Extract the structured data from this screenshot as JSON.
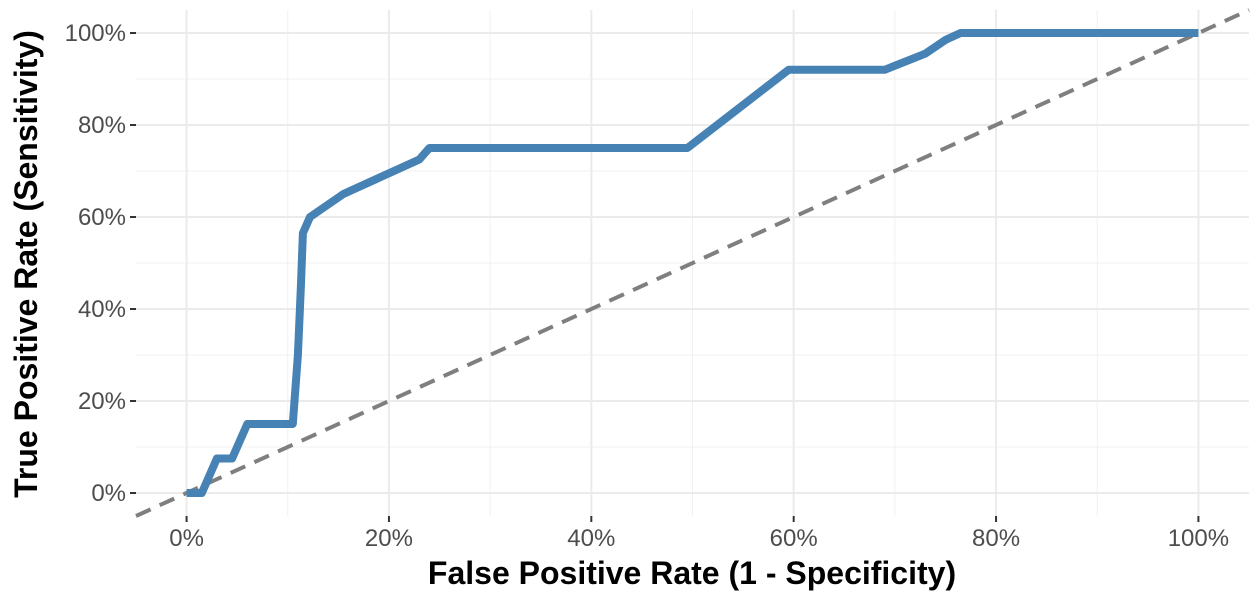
{
  "chart_data": {
    "type": "line",
    "title": "",
    "xlabel": "False Positive Rate (1 - Specificity)",
    "ylabel": "True Positive Rate (Sensitivity)",
    "xlim": [
      -5,
      105
    ],
    "ylim": [
      -5,
      105
    ],
    "x_ticks": [
      {
        "value": 0,
        "label": "0%"
      },
      {
        "value": 20,
        "label": "20%"
      },
      {
        "value": 40,
        "label": "40%"
      },
      {
        "value": 60,
        "label": "60%"
      },
      {
        "value": 80,
        "label": "80%"
      },
      {
        "value": 100,
        "label": "100%"
      }
    ],
    "y_ticks": [
      {
        "value": 0,
        "label": "0%"
      },
      {
        "value": 20,
        "label": "20%"
      },
      {
        "value": 40,
        "label": "40%"
      },
      {
        "value": 60,
        "label": "60%"
      },
      {
        "value": 80,
        "label": "80%"
      },
      {
        "value": 100,
        "label": "100%"
      }
    ],
    "grid": true,
    "series": [
      {
        "color": "#4682B4",
        "points": [
          [
            0,
            0
          ],
          [
            1.5,
            0
          ],
          [
            3,
            7.5
          ],
          [
            4.5,
            7.5
          ],
          [
            6,
            15
          ],
          [
            10.5,
            15
          ],
          [
            11,
            30
          ],
          [
            11.3,
            45
          ],
          [
            11.5,
            56.5
          ],
          [
            12.2,
            60
          ],
          [
            15.5,
            65
          ],
          [
            23,
            72.5
          ],
          [
            24,
            75
          ],
          [
            49.5,
            75
          ],
          [
            59.5,
            92
          ],
          [
            69,
            92
          ],
          [
            73,
            95.5
          ],
          [
            75,
            98.5
          ],
          [
            76.5,
            100
          ],
          [
            100,
            100
          ]
        ]
      }
    ],
    "reference_line": {
      "color": "#7F7F7F",
      "style": "dashed",
      "points": [
        [
          -5,
          -5
        ],
        [
          105,
          105
        ]
      ]
    }
  }
}
